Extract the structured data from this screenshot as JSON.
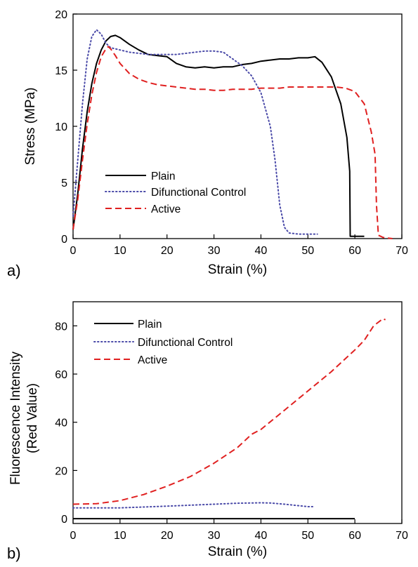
{
  "chart_data": [
    {
      "panel_label": "a)",
      "type": "line",
      "xlabel": "Strain (%)",
      "ylabel": "Stress (MPa)",
      "xlim": [
        0,
        70
      ],
      "ylim": [
        0,
        20
      ],
      "xticks": [
        "0",
        "10",
        "20",
        "30",
        "40",
        "50",
        "60",
        "70"
      ],
      "yticks": [
        "0",
        "5",
        "10",
        "15",
        "20"
      ],
      "grid": false,
      "legend_position": "bottom-left",
      "series": [
        {
          "name": "Plain",
          "color": "#000000",
          "style": "solid",
          "points": [
            [
              0,
              0.8
            ],
            [
              1,
              4
            ],
            [
              2,
              8
            ],
            [
              3,
              11.3
            ],
            [
              4,
              13.8
            ],
            [
              5,
              15.6
            ],
            [
              6,
              16.8
            ],
            [
              7,
              17.6
            ],
            [
              8,
              18.0
            ],
            [
              9,
              18.1
            ],
            [
              10,
              17.9
            ],
            [
              12,
              17.3
            ],
            [
              14,
              16.8
            ],
            [
              16,
              16.4
            ],
            [
              18,
              16.3
            ],
            [
              20,
              16.2
            ],
            [
              22,
              15.6
            ],
            [
              24,
              15.3
            ],
            [
              26,
              15.2
            ],
            [
              28,
              15.3
            ],
            [
              30,
              15.2
            ],
            [
              32,
              15.3
            ],
            [
              34,
              15.3
            ],
            [
              36,
              15.5
            ],
            [
              38,
              15.6
            ],
            [
              40,
              15.8
            ],
            [
              42,
              15.9
            ],
            [
              44,
              16.0
            ],
            [
              46,
              16.0
            ],
            [
              48,
              16.1
            ],
            [
              50,
              16.1
            ],
            [
              51.5,
              16.2
            ],
            [
              53,
              15.7
            ],
            [
              55,
              14.4
            ],
            [
              57,
              12.0
            ],
            [
              58.3,
              9.0
            ],
            [
              58.9,
              6.0
            ],
            [
              59,
              0.2
            ],
            [
              62,
              0.2
            ]
          ]
        },
        {
          "name": "Difunctional Control",
          "color": "#4a4aa8",
          "style": "dotted",
          "points": [
            [
              0,
              2
            ],
            [
              1,
              7
            ],
            [
              2,
              12
            ],
            [
              3,
              16
            ],
            [
              4,
              18.0
            ],
            [
              5,
              18.6
            ],
            [
              6,
              18.2
            ],
            [
              7,
              17.4
            ],
            [
              8,
              17.0
            ],
            [
              10,
              16.8
            ],
            [
              12,
              16.6
            ],
            [
              14,
              16.5
            ],
            [
              16,
              16.4
            ],
            [
              18,
              16.4
            ],
            [
              20,
              16.4
            ],
            [
              22,
              16.4
            ],
            [
              24,
              16.5
            ],
            [
              26,
              16.6
            ],
            [
              28,
              16.7
            ],
            [
              30,
              16.7
            ],
            [
              32,
              16.6
            ],
            [
              34,
              16.0
            ],
            [
              36,
              15.4
            ],
            [
              38,
              14.5
            ],
            [
              40,
              13.0
            ],
            [
              42,
              10.0
            ],
            [
              43,
              7.0
            ],
            [
              44,
              3.0
            ],
            [
              45,
              1.0
            ],
            [
              46,
              0.5
            ],
            [
              48,
              0.4
            ],
            [
              50,
              0.4
            ],
            [
              52,
              0.4
            ]
          ]
        },
        {
          "name": "Active",
          "color": "#e02020",
          "style": "dashed",
          "points": [
            [
              0,
              0.8
            ],
            [
              1,
              3.5
            ],
            [
              2,
              7
            ],
            [
              3,
              10.2
            ],
            [
              4,
              12.8
            ],
            [
              5,
              14.8
            ],
            [
              6,
              16.2
            ],
            [
              7,
              16.9
            ],
            [
              7.5,
              17.1
            ],
            [
              8,
              16.9
            ],
            [
              9,
              16.3
            ],
            [
              10,
              15.6
            ],
            [
              12,
              14.7
            ],
            [
              14,
              14.2
            ],
            [
              16,
              13.9
            ],
            [
              18,
              13.7
            ],
            [
              20,
              13.6
            ],
            [
              22,
              13.5
            ],
            [
              24,
              13.4
            ],
            [
              26,
              13.3
            ],
            [
              28,
              13.3
            ],
            [
              30,
              13.2
            ],
            [
              32,
              13.2
            ],
            [
              34,
              13.3
            ],
            [
              36,
              13.3
            ],
            [
              38,
              13.3
            ],
            [
              40,
              13.4
            ],
            [
              42,
              13.4
            ],
            [
              44,
              13.4
            ],
            [
              46,
              13.5
            ],
            [
              48,
              13.5
            ],
            [
              50,
              13.5
            ],
            [
              52,
              13.5
            ],
            [
              54,
              13.5
            ],
            [
              56,
              13.5
            ],
            [
              58,
              13.4
            ],
            [
              60,
              13.1
            ],
            [
              62,
              12.0
            ],
            [
              63.5,
              9.5
            ],
            [
              64.3,
              7.5
            ],
            [
              64.6,
              3.0
            ],
            [
              65,
              0.3
            ],
            [
              66,
              0.1
            ],
            [
              68,
              0.0
            ]
          ]
        }
      ]
    },
    {
      "panel_label": "b)",
      "type": "line",
      "xlabel": "Strain (%)",
      "ylabel_line1": "Fluorescence Intensity",
      "ylabel_line2": "(Red Value)",
      "xlim": [
        0,
        70
      ],
      "ylim": [
        -2,
        90
      ],
      "xticks": [
        "0",
        "10",
        "20",
        "30",
        "40",
        "50",
        "60",
        "70"
      ],
      "yticks": [
        "0",
        "20",
        "40",
        "60",
        "80"
      ],
      "grid": false,
      "legend_position": "top-left",
      "series": [
        {
          "name": "Plain",
          "color": "#000000",
          "style": "solid",
          "points": [
            [
              0,
              0
            ],
            [
              60,
              0
            ]
          ]
        },
        {
          "name": "Difunctional Control",
          "color": "#4a4aa8",
          "style": "dotted",
          "points": [
            [
              0,
              4.5
            ],
            [
              10,
              4.5
            ],
            [
              20,
              5.2
            ],
            [
              30,
              6.0
            ],
            [
              35,
              6.4
            ],
            [
              40,
              6.6
            ],
            [
              42,
              6.5
            ],
            [
              45,
              6.0
            ],
            [
              50,
              5.0
            ],
            [
              51,
              5.0
            ]
          ]
        },
        {
          "name": "Active",
          "color": "#e02020",
          "style": "dashed",
          "points": [
            [
              0,
              6
            ],
            [
              5,
              6.2
            ],
            [
              10,
              7.5
            ],
            [
              15,
              10
            ],
            [
              20,
              13.5
            ],
            [
              25,
              17.5
            ],
            [
              30,
              23
            ],
            [
              35,
              29.5
            ],
            [
              38,
              35
            ],
            [
              40,
              37
            ],
            [
              45,
              45
            ],
            [
              50,
              53
            ],
            [
              55,
              61
            ],
            [
              60,
              70
            ],
            [
              62,
              74
            ],
            [
              64,
              80
            ],
            [
              66,
              83
            ],
            [
              66.5,
              82.5
            ]
          ]
        }
      ]
    }
  ]
}
